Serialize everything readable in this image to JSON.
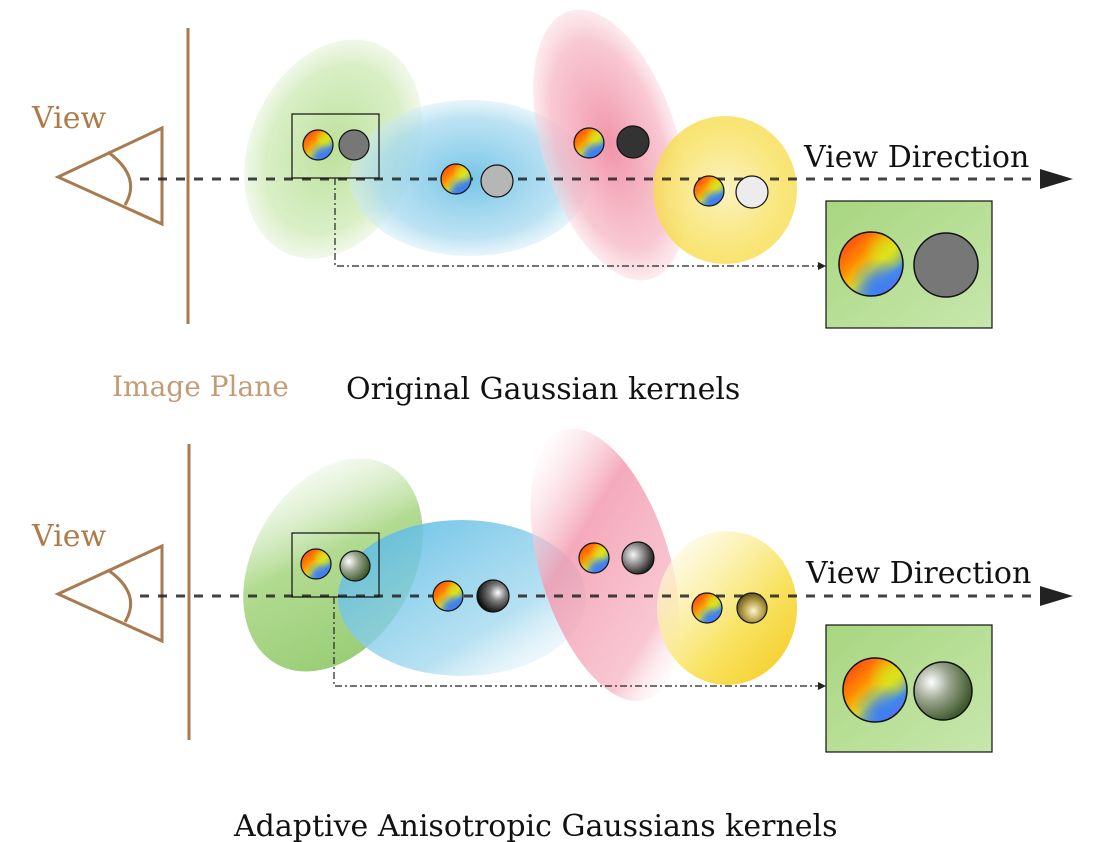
{
  "top": {
    "view_label": "View",
    "image_plane_label": "Image Plane",
    "direction_label": "View Direction",
    "caption": "Original Gaussian kernels"
  },
  "bottom": {
    "view_label": "View",
    "direction_label": "View Direction",
    "caption": "Adaptive Anisotropic Gaussians kernels"
  },
  "colors": {
    "eye_and_plane": "#a87a4f",
    "green_gaussian": "#9fd07a",
    "blue_gaussian": "#7cc8e8",
    "pink_gaussian": "#f3a0b2",
    "yellow_gaussian": "#f7dd4a",
    "ray": "#222222"
  },
  "icons": [
    "eye-icon",
    "color-wheel-icon",
    "opacity-disk-icon",
    "arrow-head-icon"
  ]
}
